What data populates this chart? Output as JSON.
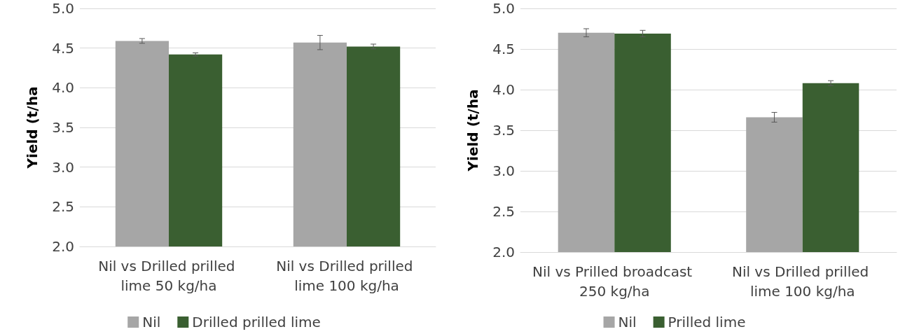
{
  "chart_data": [
    {
      "type": "bar",
      "ylabel": "Yield (t/ha",
      "categories": [
        "Nil vs Drilled prilled lime 50 kg/ha",
        "Nil vs Drilled prilled lime 100 kg/ha"
      ],
      "series": [
        {
          "name": "Nil",
          "color": "#a6a6a6",
          "values": [
            4.59,
            4.57
          ],
          "errors": [
            0.03,
            0.09
          ]
        },
        {
          "name": "Drilled prilled lime",
          "color": "#3a5f31",
          "values": [
            4.42,
            4.52
          ],
          "errors": [
            0.02,
            0.03
          ]
        }
      ],
      "ylim": [
        2.0,
        5.0
      ],
      "yticks": [
        {
          "value": 2,
          "label": "2.0"
        },
        {
          "value": 2.5,
          "label": "2.5"
        },
        {
          "value": 3,
          "label": "3.0"
        },
        {
          "value": 3.5,
          "label": "3.5"
        },
        {
          "value": 4,
          "label": "4.0"
        },
        {
          "value": 4.5,
          "label": "4.5"
        },
        {
          "value": 5,
          "label": "5.0"
        }
      ],
      "grid": "y",
      "legend": "bottom"
    },
    {
      "type": "bar",
      "ylabel": "Yield (t/ha",
      "categories": [
        "Nil vs Prilled broadcast 250 kg/ha",
        "Nil vs Drilled prilled lime 100 kg/ha"
      ],
      "series": [
        {
          "name": "Nil",
          "color": "#a6a6a6",
          "values": [
            4.7,
            3.66
          ],
          "errors": [
            0.05,
            0.06
          ]
        },
        {
          "name": "Prilled lime",
          "color": "#3a5f31",
          "values": [
            4.69,
            4.08
          ],
          "errors": [
            0.04,
            0.03
          ]
        }
      ],
      "ylim": [
        2.0,
        5.0
      ],
      "yticks": [
        {
          "value": 2,
          "label": "2.0"
        },
        {
          "value": 2.5,
          "label": "2.5"
        },
        {
          "value": 3,
          "label": "3.0"
        },
        {
          "value": 3.5,
          "label": "3.5"
        },
        {
          "value": 4,
          "label": "4.0"
        },
        {
          "value": 4.5,
          "label": "4.5"
        },
        {
          "value": 5,
          "label": "5.0"
        }
      ],
      "grid": "y",
      "legend": "bottom"
    }
  ]
}
